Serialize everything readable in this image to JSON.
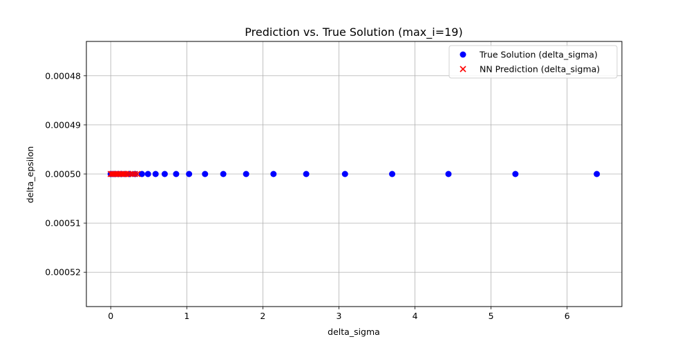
{
  "chart_data": {
    "type": "scatter",
    "title": "Prediction vs. True Solution (max_i=19)",
    "xlabel": "delta_sigma",
    "ylabel": "delta_epsilon",
    "xlim": [
      -0.32,
      6.72
    ],
    "ylim": [
      0.000527,
      0.000473
    ],
    "y_inverted": true,
    "grid": true,
    "legend_position": "top-right",
    "x_ticks": [
      {
        "value": 0,
        "label": "0"
      },
      {
        "value": 1,
        "label": "1"
      },
      {
        "value": 2,
        "label": "2"
      },
      {
        "value": 3,
        "label": "3"
      },
      {
        "value": 4,
        "label": "4"
      },
      {
        "value": 5,
        "label": "5"
      },
      {
        "value": 6,
        "label": "6"
      }
    ],
    "y_ticks": [
      {
        "value": 0.00048,
        "label": "0.00048"
      },
      {
        "value": 0.00049,
        "label": "0.00049"
      },
      {
        "value": 0.0005,
        "label": "0.00050"
      },
      {
        "value": 0.00051,
        "label": "0.00051"
      },
      {
        "value": 0.00052,
        "label": "0.00052"
      }
    ],
    "series": [
      {
        "name": "True Solution (delta_sigma)",
        "marker": "circle",
        "color": "#0000ff",
        "points": [
          [
            0.0,
            0.0005
          ],
          [
            0.03,
            0.0005
          ],
          [
            0.06,
            0.0005
          ],
          [
            0.1,
            0.0005
          ],
          [
            0.14,
            0.0005
          ],
          [
            0.19,
            0.0005
          ],
          [
            0.25,
            0.0005
          ],
          [
            0.32,
            0.0005
          ],
          [
            0.41,
            0.0005
          ],
          [
            0.49,
            0.0005
          ],
          [
            0.59,
            0.0005
          ],
          [
            0.71,
            0.0005
          ],
          [
            0.86,
            0.0005
          ],
          [
            1.03,
            0.0005
          ],
          [
            1.24,
            0.0005
          ],
          [
            1.48,
            0.0005
          ],
          [
            1.78,
            0.0005
          ],
          [
            2.14,
            0.0005
          ],
          [
            2.57,
            0.0005
          ],
          [
            3.08,
            0.0005
          ],
          [
            3.7,
            0.0005
          ],
          [
            4.44,
            0.0005
          ],
          [
            5.32,
            0.0005
          ],
          [
            6.39,
            0.0005
          ]
        ]
      },
      {
        "name": "NN Prediction (delta_sigma)",
        "marker": "x",
        "color": "#ff0000",
        "points": [
          [
            0.0,
            0.0005
          ],
          [
            0.02,
            0.0005
          ],
          [
            0.04,
            0.0005
          ],
          [
            0.06,
            0.0005
          ],
          [
            0.08,
            0.0005
          ],
          [
            0.1,
            0.0005
          ],
          [
            0.12,
            0.0005
          ],
          [
            0.14,
            0.0005
          ],
          [
            0.16,
            0.0005
          ],
          [
            0.18,
            0.0005
          ],
          [
            0.2,
            0.0005
          ],
          [
            0.23,
            0.0005
          ],
          [
            0.26,
            0.0005
          ],
          [
            0.29,
            0.0005
          ],
          [
            0.32,
            0.0005
          ],
          [
            0.35,
            0.0005
          ]
        ]
      }
    ]
  }
}
